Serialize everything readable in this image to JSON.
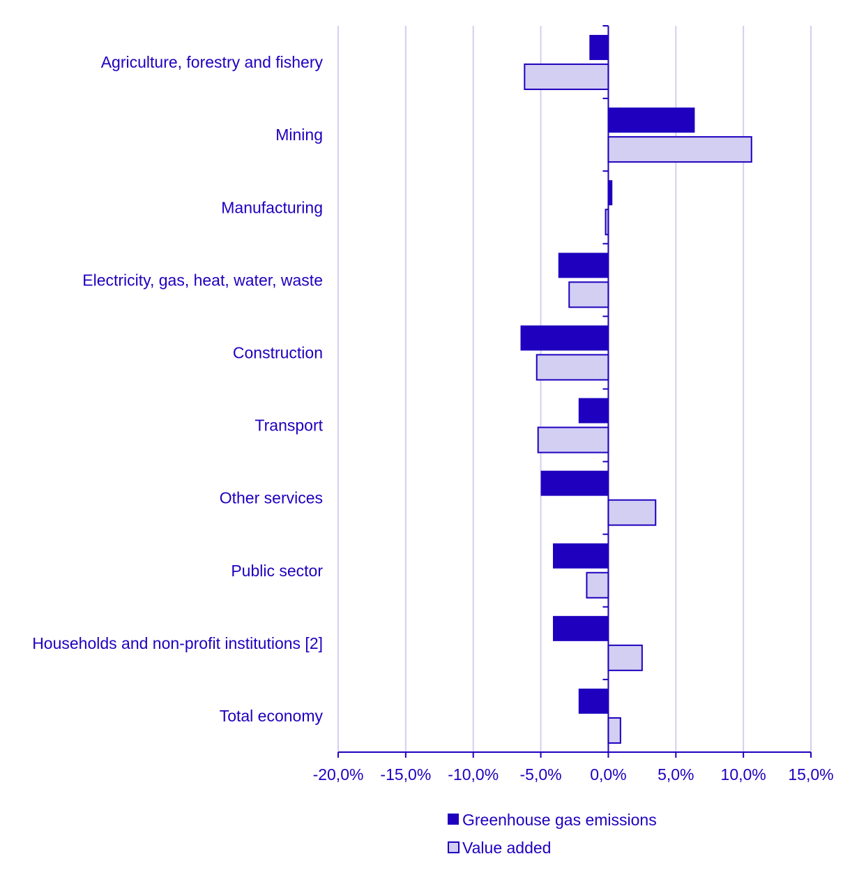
{
  "chart_data": {
    "type": "bar",
    "orientation": "horizontal",
    "title": "",
    "xlabel": "",
    "ylabel": "",
    "xlim": [
      -20,
      15
    ],
    "x_ticks": [
      -20,
      -15,
      -10,
      -5,
      0,
      5,
      10,
      15
    ],
    "x_tick_labels": [
      "-20,0%",
      "-15,0%",
      "-10,0%",
      "-5,0%",
      "0,0%",
      "5,0%",
      "10,0%",
      "15,0%"
    ],
    "grid": true,
    "legend_position": "bottom",
    "categories": [
      "Agriculture, forestry and fishery",
      "Mining",
      "Manufacturing",
      "Electricity, gas, heat, water, waste",
      "Construction",
      "Transport",
      "Other services",
      "Public sector",
      "Households and non-profit institutions [2]",
      "Total economy"
    ],
    "series": [
      {
        "name": "Greenhouse gas emissions",
        "color": "#1e00be",
        "values": [
          -1.4,
          6.4,
          0.3,
          -3.7,
          -6.5,
          -2.2,
          -5.0,
          -4.1,
          -4.1,
          -2.2
        ]
      },
      {
        "name": "Value added",
        "color": "#d2cff2",
        "values": [
          -6.2,
          10.6,
          -0.2,
          -2.9,
          -5.3,
          -5.2,
          3.5,
          -1.6,
          2.5,
          0.9
        ]
      }
    ]
  },
  "colors": {
    "text": "#1e00be",
    "axis": "#1e00be",
    "grid": "#d2cff2"
  }
}
